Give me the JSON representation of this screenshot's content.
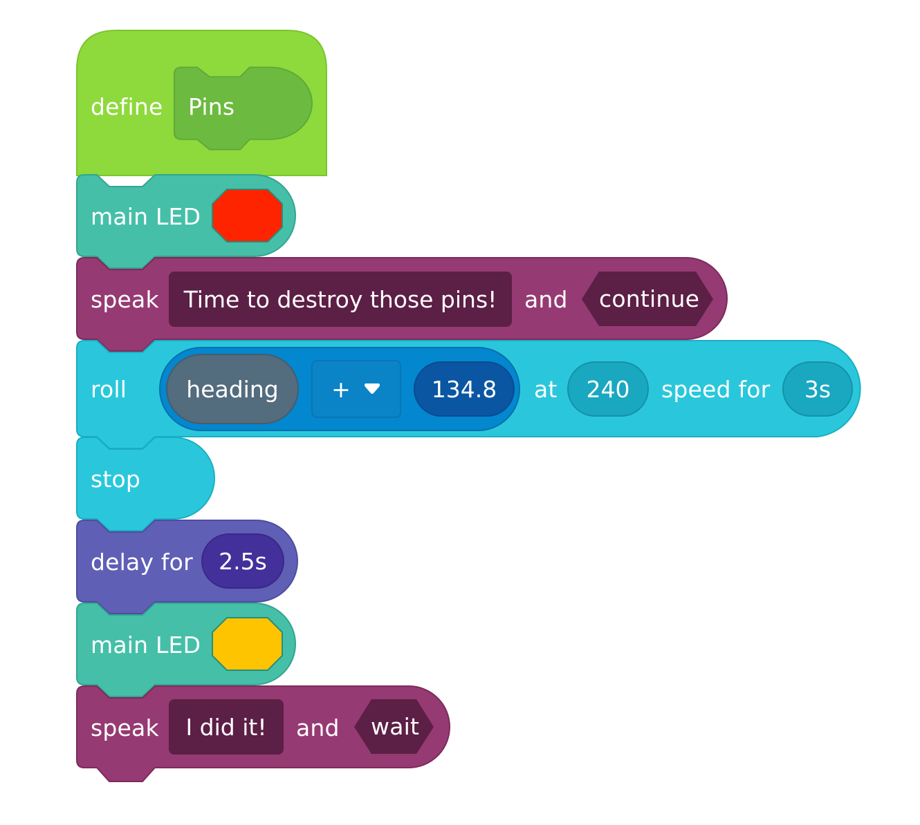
{
  "colors": {
    "define": "#8ed93c",
    "define_border": "#7cc42f",
    "define_slot": "#6cba3f",
    "led": "#45bfa8",
    "led_border": "#33a58f",
    "speak": "#963a73",
    "speak_border": "#7c2a5c",
    "speak_slot": "#5c1f45",
    "roll": "#2ac7dc",
    "roll_border": "#1aaec2",
    "roll_inner": "#0387cf",
    "roll_inner_border": "#0670ad",
    "roll_heading": "#536c7e",
    "roll_operator": "#0b83c7",
    "roll_value": "#0a56a3",
    "roll_slot": "#19a8c0",
    "delay": "#5f5fb6",
    "delay_border": "#4d4d9e",
    "delay_slot": "#44309a",
    "led_red": "#ff2400",
    "led_yellow": "#ffc400"
  },
  "blocks": {
    "define": {
      "keyword": "define",
      "name": "Pins"
    },
    "main_led_1": {
      "label": "main LED",
      "color": "#ff2400"
    },
    "speak_1": {
      "label": "speak",
      "text": "Time to destroy those pins!",
      "and_label": "and",
      "mode": "continue"
    },
    "roll": {
      "label": "roll",
      "heading_label": "heading",
      "operator": "+",
      "operator_icon": "caret-down-icon",
      "value": "134.8",
      "at_label": "at",
      "speed": "240",
      "speed_for_label": "speed for",
      "duration": "3s"
    },
    "stop": {
      "label": "stop"
    },
    "delay": {
      "label": "delay for",
      "duration": "2.5s"
    },
    "main_led_2": {
      "label": "main LED",
      "color": "#ffc400"
    },
    "speak_2": {
      "label": "speak",
      "text": "I did it!",
      "and_label": "and",
      "mode": "wait"
    }
  }
}
